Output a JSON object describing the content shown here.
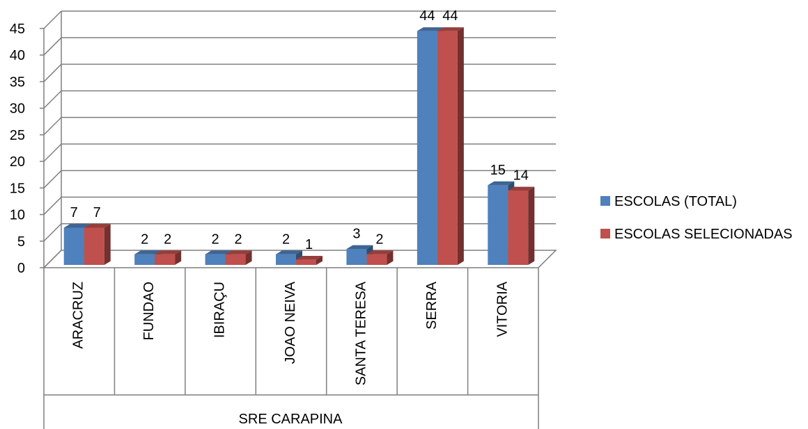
{
  "chart_data": {
    "type": "bar",
    "categories": [
      "ARACRUZ",
      "FUNDAO",
      "IBIRAÇU",
      "JOAO NEIVA",
      "SANTA TERESA",
      "SERRA",
      "VITORIA"
    ],
    "group_label": "SRE CARAPINA",
    "series": [
      {
        "name": "ESCOLAS (TOTAL)",
        "values": [
          7,
          2,
          2,
          2,
          3,
          44,
          15
        ],
        "color": "#4F81BD"
      },
      {
        "name": "ESCOLAS SELECIONADAS",
        "values": [
          7,
          2,
          2,
          1,
          2,
          44,
          14
        ],
        "color": "#C0504D"
      }
    ],
    "ylim": [
      0,
      45
    ],
    "yticks": [
      "0",
      "5",
      "10",
      "15",
      "20",
      "25",
      "30",
      "35",
      "40",
      "45"
    ],
    "grid": true,
    "legend": "right"
  }
}
